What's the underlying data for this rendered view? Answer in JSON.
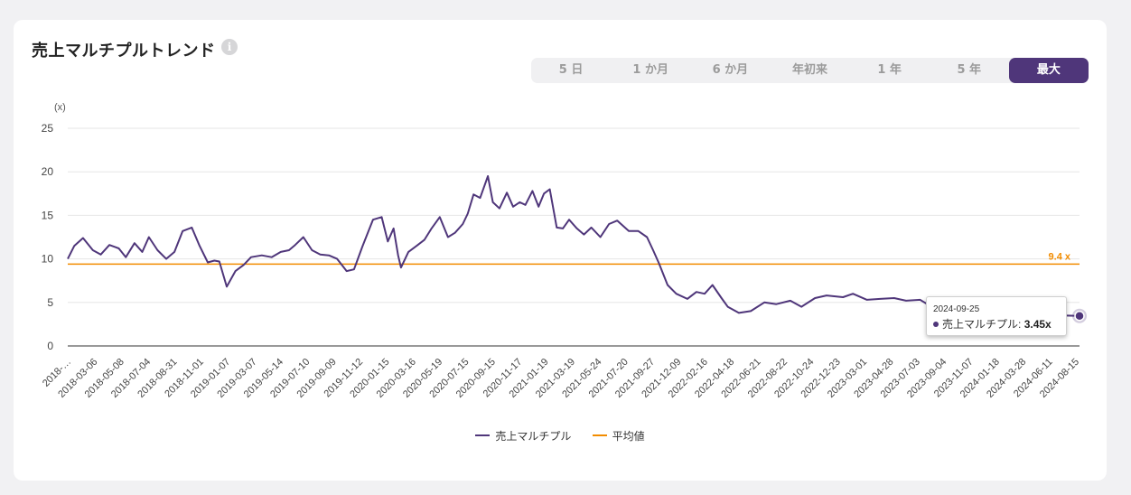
{
  "header": {
    "title": "売上マルチプルトレンド",
    "info_icon": "info-icon"
  },
  "range_buttons": [
    {
      "label": "5 日",
      "active": false
    },
    {
      "label": "1 か月",
      "active": false
    },
    {
      "label": "6 か月",
      "active": false
    },
    {
      "label": "年初来",
      "active": false
    },
    {
      "label": "1 年",
      "active": false
    },
    {
      "label": "5 年",
      "active": false
    },
    {
      "label": "最大",
      "active": true
    }
  ],
  "colors": {
    "series": "#4f367a",
    "average": "#f28c00",
    "accent": "#4f367a"
  },
  "tooltip": {
    "date": "2024-09-25",
    "series_label": "売上マルチプル:",
    "value": "3.45x"
  },
  "legend": {
    "series": "売上マルチプル",
    "average": "平均値"
  },
  "chart_data": {
    "type": "line",
    "yunit": "(x)",
    "ylim": [
      0,
      25
    ],
    "yticks": [
      0,
      5,
      10,
      15,
      20,
      25
    ],
    "grid": true,
    "legend_position": "bottom",
    "x_tick_labels": [
      "2018-…",
      "2018-03-06",
      "2018-05-08",
      "2018-07-04",
      "2018-08-31",
      "2018-11-01",
      "2019-01-07",
      "2019-03-07",
      "2019-05-14",
      "2019-07-10",
      "2019-09-09",
      "2019-11-12",
      "2020-01-15",
      "2020-03-16",
      "2020-05-19",
      "2020-07-15",
      "2020-09-15",
      "2020-11-17",
      "2021-01-19",
      "2021-03-19",
      "2021-05-24",
      "2021-07-20",
      "2021-09-27",
      "2021-12-09",
      "2022-02-16",
      "2022-04-18",
      "2022-06-21",
      "2022-08-22",
      "2022-10-24",
      "2022-12-23",
      "2023-03-01",
      "2023-04-28",
      "2023-07-03",
      "2023-09-04",
      "2023-11-07",
      "2024-01-18",
      "2024-03-28",
      "2024-06-11",
      "2024-08-15"
    ],
    "average": {
      "name": "平均値",
      "value": 9.4,
      "label": "9.4 x"
    },
    "series": [
      {
        "name": "売上マルチプル",
        "x": [
          "2018-01-04",
          "2018-01-20",
          "2018-02-10",
          "2018-03-06",
          "2018-03-25",
          "2018-04-15",
          "2018-05-08",
          "2018-05-25",
          "2018-06-15",
          "2018-07-04",
          "2018-07-20",
          "2018-08-10",
          "2018-08-31",
          "2018-09-20",
          "2018-10-10",
          "2018-11-01",
          "2018-11-20",
          "2018-12-10",
          "2018-12-26",
          "2019-01-07",
          "2019-01-25",
          "2019-02-15",
          "2019-03-07",
          "2019-03-25",
          "2019-04-20",
          "2019-05-14",
          "2019-06-05",
          "2019-06-25",
          "2019-07-10",
          "2019-07-30",
          "2019-08-20",
          "2019-09-09",
          "2019-09-30",
          "2019-10-20",
          "2019-11-12",
          "2019-11-30",
          "2019-12-20",
          "2020-01-15",
          "2020-02-05",
          "2020-02-20",
          "2020-03-05",
          "2020-03-16",
          "2020-03-23",
          "2020-04-10",
          "2020-04-30",
          "2020-05-19",
          "2020-06-05",
          "2020-06-25",
          "2020-07-15",
          "2020-08-01",
          "2020-08-20",
          "2020-09-01",
          "2020-09-15",
          "2020-10-01",
          "2020-10-20",
          "2020-11-01",
          "2020-11-17",
          "2020-12-05",
          "2020-12-20",
          "2021-01-05",
          "2021-01-19",
          "2021-02-05",
          "2021-02-20",
          "2021-03-05",
          "2021-03-19",
          "2021-04-05",
          "2021-04-20",
          "2021-05-05",
          "2021-05-24",
          "2021-06-10",
          "2021-06-28",
          "2021-07-20",
          "2021-08-10",
          "2021-08-30",
          "2021-09-27",
          "2021-10-20",
          "2021-11-10",
          "2021-11-25",
          "2021-12-09",
          "2021-12-30",
          "2022-01-20",
          "2022-02-16",
          "2022-03-10",
          "2022-03-30",
          "2022-04-18",
          "2022-05-10",
          "2022-05-25",
          "2022-06-21",
          "2022-07-20",
          "2022-08-22",
          "2022-09-20",
          "2022-10-24",
          "2022-11-20",
          "2022-12-23",
          "2023-01-20",
          "2023-03-01",
          "2023-03-25",
          "2023-04-28",
          "2023-05-30",
          "2023-07-03",
          "2023-08-01",
          "2023-09-04",
          "2023-09-25",
          "2023-10-20",
          "2023-11-07",
          "2023-12-10",
          "2024-01-18",
          "2024-02-20",
          "2024-03-28",
          "2024-05-01",
          "2024-06-11",
          "2024-07-15",
          "2024-08-15",
          "2024-09-25"
        ],
        "values": [
          10.0,
          11.5,
          12.4,
          11.0,
          10.5,
          11.6,
          11.2,
          10.2,
          11.8,
          10.8,
          12.5,
          11.0,
          10.0,
          10.8,
          13.2,
          13.6,
          11.5,
          9.6,
          9.8,
          9.7,
          6.8,
          8.6,
          9.3,
          10.2,
          10.4,
          10.2,
          10.8,
          11.0,
          11.6,
          12.5,
          11.0,
          10.5,
          10.4,
          10.0,
          8.6,
          8.8,
          11.4,
          14.5,
          14.8,
          12.0,
          13.5,
          10.4,
          9.0,
          10.8,
          11.5,
          12.2,
          13.5,
          14.8,
          12.5,
          13.0,
          14.0,
          15.2,
          17.4,
          17.0,
          19.5,
          16.5,
          15.8,
          17.6,
          16.0,
          16.5,
          16.2,
          17.8,
          16.0,
          17.5,
          18.0,
          13.6,
          13.5,
          14.5,
          13.5,
          12.8,
          13.6,
          12.5,
          14.0,
          14.4,
          13.2,
          13.2,
          12.5,
          11.0,
          9.5,
          7.0,
          6.0,
          5.4,
          6.2,
          6.0,
          7.0,
          5.5,
          4.5,
          3.8,
          4.0,
          5.0,
          4.8,
          5.2,
          4.5,
          5.5,
          5.8,
          5.6,
          6.0,
          5.3,
          5.4,
          5.5,
          5.2,
          5.3,
          4.7,
          4.3,
          4.1,
          4.0,
          4.0,
          3.9,
          3.8,
          3.7,
          3.6,
          3.55,
          3.5,
          3.45
        ]
      }
    ]
  }
}
